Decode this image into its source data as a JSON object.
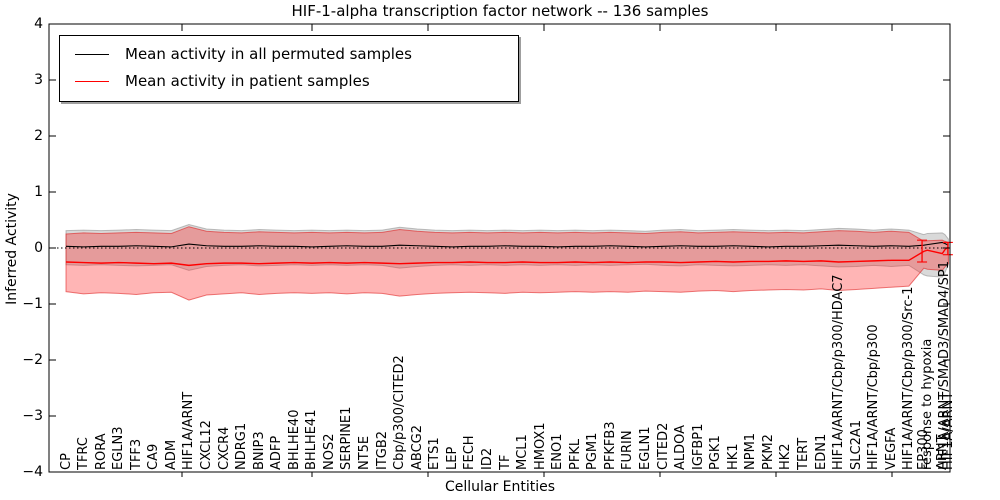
{
  "title": "HIF-1-alpha transcription factor network -- 136 samples",
  "axes": {
    "ylabel": "Inferred Activity",
    "xlabel": "Cellular Entities",
    "yticks": [
      4,
      3,
      2,
      1,
      0,
      -1,
      -2,
      -3,
      -4
    ],
    "ylim": [
      -4,
      4
    ]
  },
  "legend": {
    "items": [
      {
        "label": "Mean activity in all permuted samples",
        "color": "#000000"
      },
      {
        "label": "Mean activity in patient samples",
        "color": "#ff0000"
      }
    ]
  },
  "colors": {
    "axis": "#000000",
    "permuted_line": "#000000",
    "patient_line": "#ff0000",
    "permuted_band": "rgba(128,128,128,0.30)",
    "permuted_band_edge": "rgba(120,120,120,0.45)",
    "patient_band": "rgba(255,30,30,0.33)",
    "patient_band_edge": "rgba(220,20,20,0.55)"
  },
  "chart_data": {
    "type": "line",
    "title": "HIF-1-alpha transcription factor network -- 136 samples",
    "xlabel": "Cellular Entities",
    "ylabel": "Inferred Activity",
    "ylim": [
      -4,
      4
    ],
    "grid": false,
    "legend_position": "upper left",
    "zero_line": 0,
    "entities": [
      "CP",
      "TFRC",
      "RORA",
      "EGLN3",
      "TFF3",
      "CA9",
      "ADM",
      "HIF1A/ARNT",
      "CXCL12",
      "CXCR4",
      "NDRG1",
      "BNIP3",
      "ADFP",
      "BHLHE40",
      "BHLHE41",
      "NOS2",
      "SERPINE1",
      "NT5E",
      "ITGB2",
      "Cbp/p300/CITED2",
      "ABCG2",
      "ETS1",
      "LEP",
      "FECH",
      "ID2",
      "TF",
      "MCL1",
      "HMOX1",
      "ENO1",
      "PFKL",
      "PGM1",
      "PFKFB3",
      "FURIN",
      "EGLN1",
      "CITED2",
      "ALDOA",
      "IGFBP1",
      "PGK1",
      "HK1",
      "NPM1",
      "PKM2",
      "HK2",
      "TERT",
      "EDN1",
      "HIF1A/ARNT/Cbp/p300/HDAC7",
      "SLC2A1",
      "HIF1A/ARNT/Cbp/p300",
      "VEGFA",
      "HIF1A/ARNT/Cbp/p300/Src-1",
      "EP300",
      "response to hypoxia",
      "ARNT",
      "HIF1A/ARNT/SMAD3/SMAD4/SP1",
      "HIF1A/ARNT"
    ],
    "x_units": [
      0,
      1,
      2,
      3,
      4,
      5,
      6,
      7,
      8,
      9,
      10,
      11,
      12,
      13,
      14,
      15,
      16,
      17,
      18,
      19,
      20,
      21,
      22,
      23,
      24,
      25,
      26,
      27,
      28,
      29,
      30,
      31,
      32,
      33,
      34,
      35,
      36,
      37,
      38,
      39,
      40,
      41,
      42,
      43,
      44,
      45,
      46,
      47,
      48,
      48.85,
      49.05,
      49.9,
      50.05,
      50.25
    ],
    "series": [
      {
        "name": "Mean activity in all permuted samples",
        "color": "#000000",
        "values": [
          0.03,
          0.02,
          0.03,
          0.03,
          0.04,
          0.03,
          0.02,
          0.07,
          0.04,
          0.03,
          0.03,
          0.04,
          0.03,
          0.03,
          0.02,
          0.03,
          0.04,
          0.03,
          0.03,
          0.05,
          0.04,
          0.03,
          0.02,
          0.03,
          0.03,
          0.04,
          0.03,
          0.03,
          0.02,
          0.03,
          0.03,
          0.04,
          0.03,
          0.02,
          0.03,
          0.04,
          0.03,
          0.03,
          0.04,
          0.03,
          0.02,
          0.03,
          0.03,
          0.04,
          0.05,
          0.04,
          0.03,
          0.04,
          0.03,
          0.05,
          0.06,
          0.1,
          0.08,
          0.05
        ]
      },
      {
        "name": "Mean activity in patient samples",
        "color": "#ff0000",
        "values": [
          -0.25,
          -0.26,
          -0.27,
          -0.26,
          -0.27,
          -0.28,
          -0.27,
          -0.31,
          -0.28,
          -0.27,
          -0.27,
          -0.28,
          -0.27,
          -0.26,
          -0.27,
          -0.26,
          -0.27,
          -0.26,
          -0.27,
          -0.28,
          -0.27,
          -0.26,
          -0.26,
          -0.25,
          -0.26,
          -0.26,
          -0.25,
          -0.26,
          -0.26,
          -0.25,
          -0.26,
          -0.25,
          -0.26,
          -0.25,
          -0.25,
          -0.26,
          -0.25,
          -0.24,
          -0.25,
          -0.24,
          -0.24,
          -0.23,
          -0.24,
          -0.23,
          -0.25,
          -0.24,
          -0.23,
          -0.22,
          -0.22,
          -0.06,
          -0.04,
          -0.1,
          -0.03,
          0.02
        ]
      }
    ],
    "bands": [
      {
        "name": "permuted-range-band",
        "top": [
          0.31,
          0.32,
          0.31,
          0.32,
          0.33,
          0.32,
          0.31,
          0.42,
          0.34,
          0.32,
          0.31,
          0.33,
          0.32,
          0.31,
          0.32,
          0.31,
          0.32,
          0.31,
          0.32,
          0.37,
          0.34,
          0.32,
          0.31,
          0.32,
          0.31,
          0.32,
          0.31,
          0.32,
          0.31,
          0.32,
          0.31,
          0.32,
          0.31,
          0.3,
          0.32,
          0.33,
          0.31,
          0.32,
          0.33,
          0.32,
          0.31,
          0.32,
          0.31,
          0.33,
          0.35,
          0.34,
          0.32,
          0.34,
          0.32,
          0.24,
          0.26,
          0.27,
          0.24,
          0.16
        ],
        "bottom": [
          -0.3,
          -0.31,
          -0.3,
          -0.31,
          -0.32,
          -0.31,
          -0.3,
          -0.4,
          -0.33,
          -0.31,
          -0.3,
          -0.32,
          -0.31,
          -0.3,
          -0.31,
          -0.3,
          -0.31,
          -0.3,
          -0.31,
          -0.36,
          -0.33,
          -0.31,
          -0.3,
          -0.31,
          -0.3,
          -0.31,
          -0.3,
          -0.31,
          -0.3,
          -0.31,
          -0.3,
          -0.31,
          -0.3,
          -0.29,
          -0.31,
          -0.32,
          -0.3,
          -0.31,
          -0.32,
          -0.31,
          -0.3,
          -0.31,
          -0.3,
          -0.32,
          -0.34,
          -0.33,
          -0.31,
          -0.33,
          -0.31,
          -0.48,
          -0.5,
          -0.52,
          -0.44,
          -0.3
        ]
      },
      {
        "name": "patient-range-band",
        "top": [
          0.25,
          0.27,
          0.26,
          0.27,
          0.28,
          0.27,
          0.26,
          0.38,
          0.3,
          0.28,
          0.27,
          0.29,
          0.28,
          0.27,
          0.28,
          0.27,
          0.28,
          0.27,
          0.28,
          0.33,
          0.3,
          0.28,
          0.27,
          0.28,
          0.27,
          0.28,
          0.27,
          0.28,
          0.27,
          0.28,
          0.27,
          0.28,
          0.27,
          0.26,
          0.28,
          0.29,
          0.27,
          0.28,
          0.29,
          0.28,
          0.27,
          0.28,
          0.27,
          0.29,
          0.31,
          0.3,
          0.28,
          0.3,
          0.28,
          0.12,
          0.13,
          0.14,
          0.12,
          0.1
        ],
        "bottom": [
          -0.78,
          -0.82,
          -0.8,
          -0.81,
          -0.83,
          -0.8,
          -0.79,
          -0.93,
          -0.84,
          -0.82,
          -0.8,
          -0.83,
          -0.81,
          -0.8,
          -0.81,
          -0.8,
          -0.82,
          -0.8,
          -0.81,
          -0.86,
          -0.83,
          -0.81,
          -0.8,
          -0.79,
          -0.8,
          -0.81,
          -0.79,
          -0.8,
          -0.79,
          -0.78,
          -0.79,
          -0.78,
          -0.79,
          -0.77,
          -0.78,
          -0.79,
          -0.77,
          -0.76,
          -0.78,
          -0.76,
          -0.75,
          -0.74,
          -0.75,
          -0.73,
          -0.76,
          -0.74,
          -0.72,
          -0.7,
          -0.68,
          -0.36,
          -0.38,
          -0.4,
          -0.34,
          -0.28
        ]
      }
    ],
    "spikes": [
      {
        "x_unit": 48.75,
        "y1": -0.25,
        "y2": 0.14
      },
      {
        "x_unit": 50.22,
        "y1": -0.12,
        "y2": 0.1
      }
    ]
  }
}
